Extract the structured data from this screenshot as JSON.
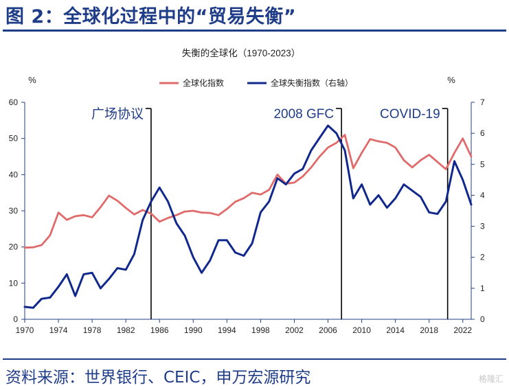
{
  "figure_title": "图 2：全球化过程中的“贸易失衡”",
  "source": "资料来源：世界银行、CEIC，申万宏源研究",
  "watermark": "格隆汇",
  "colors": {
    "red": "#e06a6a",
    "blue": "#10288c",
    "axis": "#1f3c88",
    "brand": "#1f3c88"
  },
  "chart_data": {
    "type": "line",
    "title": "失衡的全球化（1970-2023）",
    "left_unit": "%",
    "right_unit": "%",
    "ylim_left": [
      0,
      60
    ],
    "yticks_left": [
      0,
      10,
      20,
      30,
      40,
      50,
      60
    ],
    "ylim_right": [
      0,
      7
    ],
    "yticks_right": [
      0,
      1,
      2,
      3,
      4,
      5,
      6,
      7
    ],
    "xlim": [
      1970,
      2023
    ],
    "xticks": [
      1970,
      1974,
      1978,
      1982,
      1986,
      1990,
      1994,
      1998,
      2002,
      2006,
      2010,
      2014,
      2018,
      2022
    ],
    "grid": false,
    "legend_position": "top",
    "series": [
      {
        "name": "全球化指数",
        "axis": "left",
        "color": "#e06a6a",
        "x": [
          1970,
          1971,
          1972,
          1973,
          1974,
          1975,
          1976,
          1977,
          1978,
          1979,
          1980,
          1981,
          1982,
          1983,
          1984,
          1985,
          1986,
          1987,
          1988,
          1989,
          1990,
          1991,
          1992,
          1993,
          1994,
          1995,
          1996,
          1997,
          1998,
          1999,
          2000,
          2001,
          2002,
          2003,
          2004,
          2005,
          2006,
          2007,
          2008,
          2009,
          2010,
          2011,
          2012,
          2013,
          2014,
          2015,
          2016,
          2017,
          2018,
          2019,
          2020,
          2021,
          2022,
          2023
        ],
        "y": [
          19.8,
          19.9,
          20.5,
          23.2,
          29.5,
          27.5,
          28.5,
          28.8,
          28.2,
          31.0,
          34.2,
          32.8,
          30.8,
          29.0,
          30.2,
          29.2,
          27.0,
          28.0,
          28.8,
          29.8,
          30.0,
          29.5,
          29.4,
          28.8,
          30.5,
          32.5,
          33.5,
          35.0,
          34.5,
          35.8,
          40.0,
          37.5,
          37.8,
          39.5,
          42.0,
          45.0,
          47.5,
          48.8,
          51.0,
          41.8,
          46.0,
          49.8,
          49.2,
          48.8,
          47.5,
          44.0,
          42.0,
          44.0,
          45.5,
          43.5,
          41.5,
          46.0,
          50.0,
          45.0
        ]
      },
      {
        "name": "全球失衡指数（右轴）",
        "axis": "right",
        "color": "#10288c",
        "x": [
          1970,
          1971,
          1972,
          1973,
          1974,
          1975,
          1976,
          1977,
          1978,
          1979,
          1980,
          1981,
          1982,
          1983,
          1984,
          1985,
          1986,
          1987,
          1988,
          1989,
          1990,
          1991,
          1992,
          1993,
          1994,
          1995,
          1996,
          1997,
          1998,
          1999,
          2000,
          2001,
          2002,
          2003,
          2004,
          2005,
          2006,
          2007,
          2008,
          2009,
          2010,
          2011,
          2012,
          2013,
          2014,
          2015,
          2016,
          2017,
          2018,
          2019,
          2020,
          2021,
          2022,
          2023
        ],
        "y": [
          0.4,
          0.37,
          0.66,
          0.7,
          1.05,
          1.45,
          0.75,
          1.45,
          1.5,
          1.0,
          1.3,
          1.65,
          1.6,
          2.1,
          3.2,
          3.8,
          4.25,
          3.8,
          3.1,
          2.7,
          2.0,
          1.5,
          1.9,
          2.55,
          2.55,
          2.15,
          2.05,
          2.45,
          3.45,
          3.8,
          4.55,
          4.35,
          4.7,
          4.85,
          5.45,
          5.85,
          6.25,
          6.0,
          5.45,
          3.9,
          4.35,
          3.7,
          4.0,
          3.6,
          3.9,
          4.35,
          4.15,
          3.95,
          3.45,
          3.4,
          3.8,
          5.1,
          4.5,
          3.7
        ]
      }
    ],
    "annotations": [
      {
        "label": "广场协议",
        "x": 1985.0
      },
      {
        "label": "2008 GFC",
        "x": 2007.6
      },
      {
        "label": "COVID-19",
        "x": 2020.2
      }
    ]
  }
}
